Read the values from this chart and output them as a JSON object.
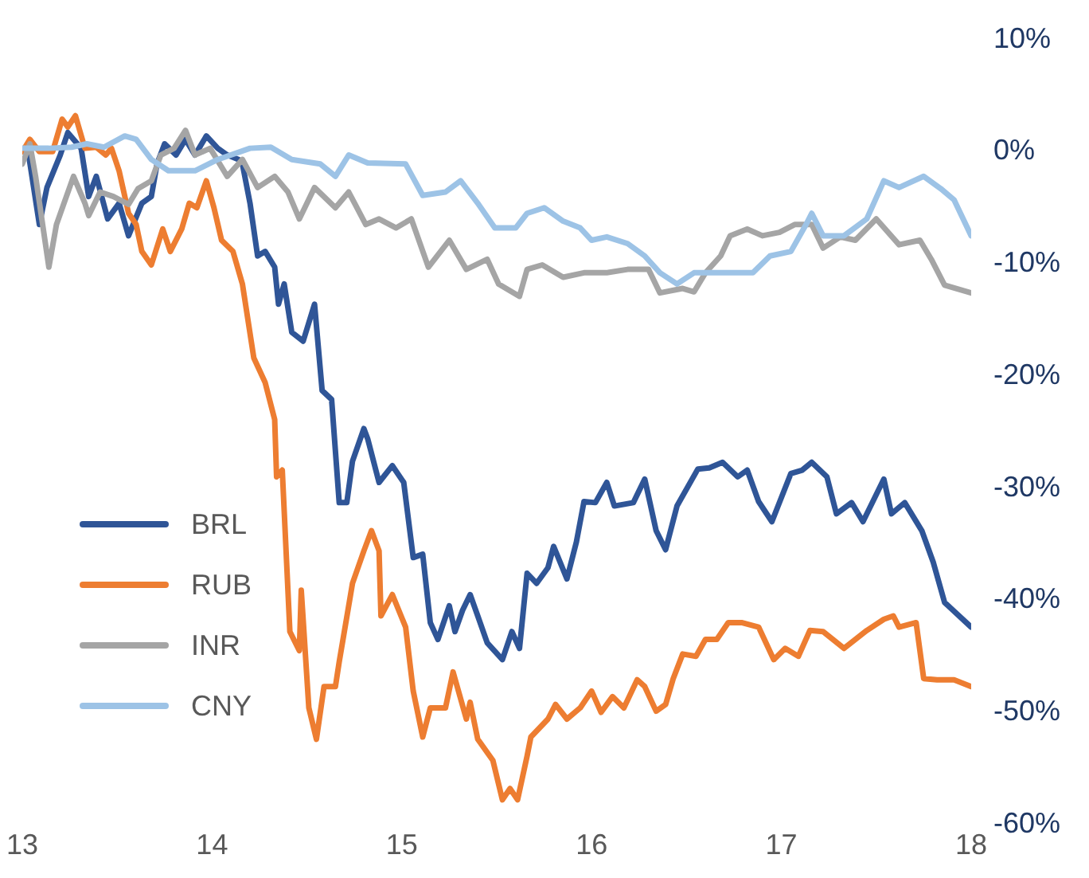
{
  "chart_data": {
    "type": "line",
    "xlim": [
      13,
      18
    ],
    "xticks": [
      13,
      14,
      15,
      16,
      17,
      18
    ],
    "ylim": [
      -60,
      10
    ],
    "yticks": [
      {
        "value": 10,
        "label": "10%"
      },
      {
        "value": 0,
        "label": "0%"
      },
      {
        "value": -10,
        "label": "-10%"
      },
      {
        "value": -20,
        "label": "-20%"
      },
      {
        "value": -30,
        "label": "-30%"
      },
      {
        "value": -40,
        "label": "-40%"
      },
      {
        "value": -50,
        "label": "-50%"
      },
      {
        "value": -60,
        "label": "-60%"
      }
    ],
    "grid": false,
    "legend": "left",
    "marker": "none",
    "line_style": "solid",
    "series": [
      {
        "name": "BRL",
        "color": "#2f5597",
        "x": [
          13.0,
          13.03,
          13.09,
          13.13,
          13.2,
          13.24,
          13.31,
          13.35,
          13.39,
          13.45,
          13.51,
          13.56,
          13.63,
          13.68,
          13.71,
          13.75,
          13.81,
          13.86,
          13.91,
          13.97,
          14.03,
          14.08,
          14.14,
          14.16,
          14.2,
          14.24,
          14.28,
          14.33,
          14.35,
          14.38,
          14.42,
          14.48,
          14.54,
          14.58,
          14.63,
          14.67,
          14.71,
          14.74,
          14.8,
          14.82,
          14.88,
          14.95,
          15.01,
          15.06,
          15.11,
          15.15,
          15.19,
          15.25,
          15.28,
          15.32,
          15.36,
          15.4,
          15.45,
          15.53,
          15.58,
          15.62,
          15.66,
          15.71,
          15.77,
          15.8,
          15.87,
          15.92,
          15.96,
          16.02,
          16.08,
          16.12,
          16.22,
          16.28,
          16.34,
          16.39,
          16.45,
          16.56,
          16.62,
          16.69,
          16.77,
          16.82,
          16.88,
          16.95,
          17.05,
          17.11,
          17.16,
          17.24,
          17.29,
          17.37,
          17.43,
          17.54,
          17.58,
          17.65,
          17.74,
          17.8,
          17.86,
          18.0
        ],
        "values": [
          0,
          0.1,
          -6.5,
          -3.2,
          -0.3,
          1.7,
          0.3,
          -4.0,
          -2.2,
          -6.0,
          -4.6,
          -7.5,
          -4.6,
          -4.0,
          -1.1,
          0.7,
          -0.3,
          1.1,
          -0.3,
          1.4,
          0.3,
          -0.3,
          -0.7,
          -1.1,
          -4.6,
          -9.3,
          -8.9,
          -10.3,
          -13.6,
          -11.8,
          -16.1,
          -16.9,
          -13.6,
          -21.3,
          -22.1,
          -31.3,
          -31.3,
          -27.6,
          -24.7,
          -25.6,
          -29.5,
          -28.0,
          -29.5,
          -36.2,
          -35.9,
          -42.0,
          -43.5,
          -40.5,
          -42.8,
          -40.9,
          -39.5,
          -41.4,
          -43.8,
          -45.3,
          -42.8,
          -44.3,
          -37.6,
          -38.5,
          -37.1,
          -35.2,
          -38.1,
          -34.8,
          -31.2,
          -31.3,
          -29.5,
          -31.6,
          -31.3,
          -29.2,
          -33.8,
          -35.5,
          -31.6,
          -28.3,
          -28.2,
          -27.7,
          -29.0,
          -28.4,
          -31.2,
          -33.0,
          -28.7,
          -28.4,
          -27.7,
          -29.0,
          -32.3,
          -31.3,
          -33.0,
          -29.2,
          -32.3,
          -31.3,
          -33.8,
          -36.6,
          -40.2,
          -42.4
        ]
      },
      {
        "name": "RUB",
        "color": "#ed7d31",
        "x": [
          13.0,
          13.04,
          13.09,
          13.16,
          13.21,
          13.24,
          13.28,
          13.33,
          13.39,
          13.44,
          13.47,
          13.51,
          13.56,
          13.6,
          13.63,
          13.68,
          13.74,
          13.78,
          13.84,
          13.88,
          13.92,
          13.97,
          14.01,
          14.05,
          14.11,
          14.16,
          14.22,
          14.28,
          14.33,
          14.34,
          14.37,
          14.41,
          14.46,
          14.47,
          14.51,
          14.55,
          14.59,
          14.65,
          14.67,
          14.74,
          14.8,
          14.84,
          14.88,
          14.89,
          14.95,
          15.02,
          15.06,
          15.11,
          15.15,
          15.23,
          15.27,
          15.34,
          15.36,
          15.4,
          15.48,
          15.53,
          15.57,
          15.61,
          15.66,
          15.68,
          15.77,
          15.81,
          15.87,
          15.94,
          16.0,
          16.05,
          16.11,
          16.17,
          16.24,
          16.28,
          16.34,
          16.39,
          16.43,
          16.48,
          16.55,
          16.6,
          16.66,
          16.72,
          16.79,
          16.88,
          16.96,
          17.02,
          17.09,
          17.15,
          17.22,
          17.33,
          17.45,
          17.54,
          17.59,
          17.62,
          17.71,
          17.75,
          17.82,
          17.91,
          18.0
        ],
        "values": [
          0,
          1.1,
          0,
          0,
          2.9,
          2.2,
          3.2,
          0.3,
          0.4,
          -0.3,
          0.3,
          -1.7,
          -5.5,
          -6.5,
          -8.9,
          -10.1,
          -6.9,
          -8.9,
          -6.9,
          -4.6,
          -5.0,
          -2.6,
          -5.0,
          -7.9,
          -8.9,
          -11.8,
          -18.4,
          -20.6,
          -23.9,
          -29.0,
          -28.4,
          -42.8,
          -44.5,
          -39.1,
          -49.6,
          -52.4,
          -47.7,
          -47.7,
          -45.5,
          -38.5,
          -35.6,
          -33.8,
          -35.6,
          -41.4,
          -39.5,
          -42.4,
          -48.1,
          -52.2,
          -49.6,
          -49.6,
          -46.4,
          -50.6,
          -49.1,
          -52.4,
          -54.3,
          -57.8,
          -56.8,
          -57.8,
          -53.9,
          -52.2,
          -50.6,
          -49.3,
          -50.6,
          -49.6,
          -48.1,
          -50.0,
          -48.6,
          -49.6,
          -47.1,
          -47.7,
          -49.9,
          -49.3,
          -47.0,
          -44.8,
          -45.0,
          -43.5,
          -43.5,
          -42.0,
          -42.0,
          -42.4,
          -45.3,
          -44.3,
          -45.0,
          -42.7,
          -42.8,
          -44.3,
          -42.7,
          -41.7,
          -41.4,
          -42.4,
          -42.0,
          -47.0,
          -47.1,
          -47.1,
          -47.7
        ]
      },
      {
        "name": "INR",
        "color": "#a5a5a5",
        "x": [
          13.0,
          13.04,
          13.07,
          13.14,
          13.18,
          13.27,
          13.33,
          13.35,
          13.41,
          13.48,
          13.56,
          13.61,
          13.68,
          13.73,
          13.8,
          13.86,
          13.91,
          13.99,
          14.08,
          14.16,
          14.24,
          14.33,
          14.4,
          14.46,
          14.54,
          14.65,
          14.72,
          14.81,
          14.88,
          14.97,
          15.05,
          15.14,
          15.25,
          15.34,
          15.45,
          15.51,
          15.62,
          15.66,
          15.74,
          15.85,
          15.96,
          16.08,
          16.19,
          16.3,
          16.36,
          16.48,
          16.54,
          16.6,
          16.68,
          16.73,
          16.82,
          16.9,
          16.99,
          17.07,
          17.16,
          17.22,
          17.31,
          17.39,
          17.5,
          17.62,
          17.73,
          17.79,
          17.86,
          18.0
        ],
        "values": [
          -1.1,
          0.7,
          -2.2,
          -10.3,
          -6.5,
          -2.2,
          -4.6,
          -5.7,
          -3.6,
          -4.0,
          -4.7,
          -3.3,
          -2.6,
          -0.3,
          0.3,
          1.9,
          -0.3,
          0.3,
          -2.2,
          -0.7,
          -3.2,
          -2.2,
          -3.6,
          -6.0,
          -3.2,
          -5.0,
          -3.6,
          -6.5,
          -6.0,
          -6.8,
          -6.0,
          -10.3,
          -7.9,
          -10.5,
          -9.6,
          -11.8,
          -12.9,
          -10.5,
          -10.1,
          -11.2,
          -10.8,
          -10.8,
          -10.5,
          -10.5,
          -12.6,
          -12.2,
          -12.5,
          -10.8,
          -9.3,
          -7.5,
          -6.9,
          -7.5,
          -7.2,
          -6.5,
          -6.5,
          -8.6,
          -7.6,
          -7.9,
          -6.0,
          -8.3,
          -7.9,
          -9.6,
          -11.9,
          -12.6
        ]
      },
      {
        "name": "CNY",
        "color": "#9dc3e6",
        "x": [
          13.0,
          13.14,
          13.26,
          13.34,
          13.43,
          13.54,
          13.6,
          13.68,
          13.77,
          13.91,
          14.03,
          14.2,
          14.31,
          14.42,
          14.57,
          14.65,
          14.72,
          14.82,
          15.02,
          15.11,
          15.23,
          15.31,
          15.4,
          15.49,
          15.6,
          15.66,
          15.75,
          15.85,
          15.94,
          16.0,
          16.08,
          16.19,
          16.28,
          16.36,
          16.45,
          16.54,
          16.77,
          16.85,
          16.94,
          17.05,
          17.13,
          17.16,
          17.22,
          17.33,
          17.45,
          17.54,
          17.62,
          17.75,
          17.84,
          17.91,
          18.0
        ],
        "values": [
          0.3,
          0.3,
          0.4,
          0.7,
          0.4,
          1.4,
          1.1,
          -0.7,
          -1.7,
          -1.7,
          -0.7,
          0.3,
          0.4,
          -0.7,
          -1.1,
          -2.2,
          -0.3,
          -1.0,
          -1.1,
          -3.9,
          -3.6,
          -2.6,
          -4.6,
          -6.8,
          -6.8,
          -5.5,
          -5.0,
          -6.2,
          -6.8,
          -7.9,
          -7.6,
          -8.2,
          -9.3,
          -10.8,
          -11.8,
          -10.8,
          -10.8,
          -10.8,
          -9.3,
          -8.9,
          -6.5,
          -5.5,
          -7.5,
          -7.5,
          -6.0,
          -2.6,
          -3.2,
          -2.2,
          -3.3,
          -4.3,
          -7.5
        ]
      }
    ]
  }
}
